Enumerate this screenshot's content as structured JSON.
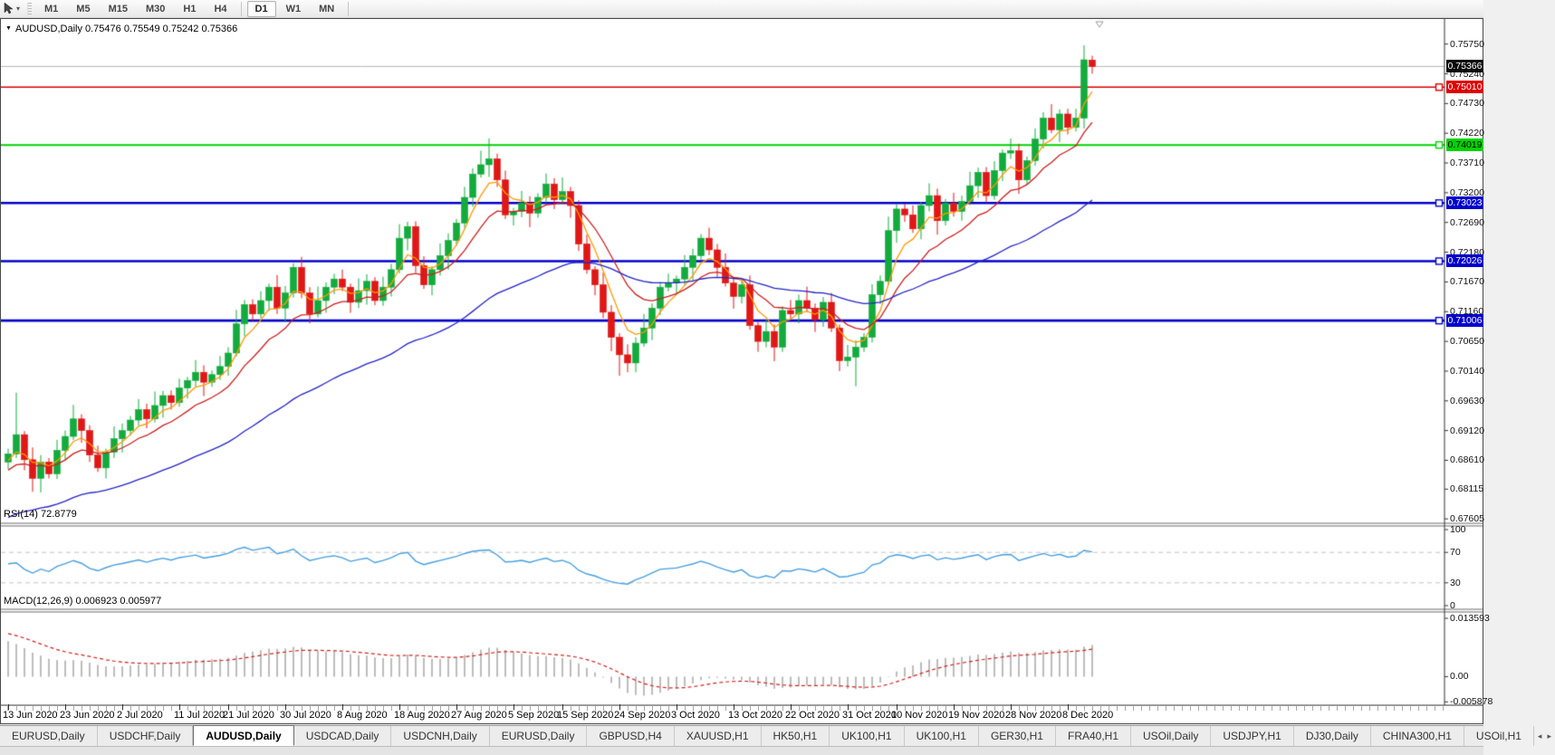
{
  "toolbar": {
    "cursor_tool": "cursor-pointer-tool",
    "dropdown_icon": "▾",
    "timeframes": [
      {
        "label": "M1",
        "active": false
      },
      {
        "label": "M5",
        "active": false
      },
      {
        "label": "M15",
        "active": false
      },
      {
        "label": "M30",
        "active": false
      },
      {
        "label": "H1",
        "active": false
      },
      {
        "label": "H4",
        "active": false
      },
      {
        "label": "D1",
        "active": true
      },
      {
        "label": "W1",
        "active": false
      },
      {
        "label": "MN",
        "active": false
      }
    ],
    "separators_after": [
      5,
      8
    ]
  },
  "chart": {
    "title": "AUDUSD,Daily  0.75476 0.75549 0.75242 0.75366",
    "symbol": "AUDUSD",
    "timeframe": "Daily",
    "title_arrow_icon": "▼",
    "open": "0.75476",
    "high": "0.75549",
    "low": "0.75242",
    "close": "0.75366"
  },
  "price_axis": {
    "ticks": [
      "0.75750",
      "0.75240",
      "0.74730",
      "0.74220",
      "0.73710",
      "0.73200",
      "0.72690",
      "0.72180",
      "0.71670",
      "0.71160",
      "0.70650",
      "0.70140",
      "0.69630",
      "0.69120",
      "0.68610",
      "0.68115",
      "0.67605"
    ],
    "current_price": {
      "label": "0.75366",
      "value": 0.75366,
      "bg": "#0a0a0a",
      "fg": "#ffffff"
    }
  },
  "hlines": [
    {
      "value": 0.7501,
      "label": "0.75010",
      "color": "#dd0000",
      "thickness": 1.6,
      "text_color": "#ffffff"
    },
    {
      "value": 0.74019,
      "label": "0.74019",
      "color": "#00d300",
      "thickness": 2.0,
      "text_color": "#000000"
    },
    {
      "value": 0.73023,
      "label": "0.73023",
      "color": "#0000cc",
      "thickness": 2.6,
      "text_color": "#ffffff"
    },
    {
      "value": 0.72026,
      "label": "0.72026",
      "color": "#0000cc",
      "thickness": 2.6,
      "text_color": "#ffffff"
    },
    {
      "value": 0.71006,
      "label": "0.71006",
      "color": "#0000cc",
      "thickness": 2.6,
      "text_color": "#ffffff"
    }
  ],
  "indicators": {
    "rsi": {
      "label": "RSI(14) 72.8779",
      "value": "72.8779",
      "period": 14,
      "color": "#47a0e0",
      "levels": [
        "100",
        "70",
        "30",
        "0"
      ],
      "level_values": [
        100,
        70,
        30,
        0
      ],
      "dashed_levels": [
        70,
        30
      ]
    },
    "macd": {
      "label": "MACD(12,26,9) 0.006923 0.005977",
      "macd_value": "0.006923",
      "signal_value": "0.005977",
      "axis": [
        "0.013593",
        "0.00",
        "-0.005878"
      ],
      "axis_values": [
        0.013593,
        0.0,
        -0.005878
      ],
      "histogram_color": "#bdbdbd",
      "signal_color": "#d42020"
    }
  },
  "chart_data": {
    "type": "candlestick",
    "symbol": "AUDUSD",
    "timeframe": "Daily",
    "price_range": {
      "top": 0.759,
      "bottom": 0.675
    },
    "closes": [
      0.6872,
      0.6905,
      0.6862,
      0.683,
      0.6858,
      0.6838,
      0.6878,
      0.6902,
      0.6932,
      0.6912,
      0.687,
      0.6848,
      0.6875,
      0.6898,
      0.6912,
      0.693,
      0.6948,
      0.6932,
      0.6955,
      0.6972,
      0.696,
      0.6985,
      0.6998,
      0.7012,
      0.6995,
      0.7008,
      0.7022,
      0.7045,
      0.7095,
      0.7128,
      0.7112,
      0.7135,
      0.7158,
      0.7122,
      0.7148,
      0.7192,
      0.7148,
      0.7112,
      0.7135,
      0.7158,
      0.7172,
      0.7158,
      0.7132,
      0.7152,
      0.7168,
      0.7135,
      0.7158,
      0.7188,
      0.7242,
      0.7262,
      0.7195,
      0.7162,
      0.7188,
      0.7212,
      0.7238,
      0.7268,
      0.7312,
      0.7352,
      0.7368,
      0.7378,
      0.7342,
      0.7282,
      0.7288,
      0.7302,
      0.7285,
      0.7312,
      0.7335,
      0.7308,
      0.7322,
      0.7298,
      0.7232,
      0.7188,
      0.7162,
      0.7115,
      0.7072,
      0.7042,
      0.7028,
      0.7062,
      0.7088,
      0.7122,
      0.7158,
      0.7165,
      0.7172,
      0.7192,
      0.7212,
      0.7242,
      0.7222,
      0.7192,
      0.7165,
      0.7142,
      0.7162,
      0.7092,
      0.7065,
      0.7082,
      0.7055,
      0.7118,
      0.7112,
      0.7135,
      0.7122,
      0.7102,
      0.7132,
      0.7088,
      0.7032,
      0.7038,
      0.7055,
      0.7072,
      0.7145,
      0.7168,
      0.7255,
      0.7292,
      0.7282,
      0.7258,
      0.7298,
      0.7315,
      0.7272,
      0.7302,
      0.7288,
      0.7305,
      0.7332,
      0.7355,
      0.7315,
      0.7358,
      0.7388,
      0.7392,
      0.7342,
      0.7375,
      0.7412,
      0.7448,
      0.7428,
      0.7455,
      0.7432,
      0.7448,
      0.7548,
      0.75366
    ],
    "first_open": 0.6858,
    "current_candle": {
      "open": 0.75476,
      "high": 0.75549,
      "low": 0.75242,
      "close": 0.75366
    },
    "special_wicks": {
      "1": {
        "high": 0.6977
      },
      "3": {
        "low": 0.6807
      },
      "59": {
        "high": 0.7413
      },
      "75": {
        "low": 0.7006
      },
      "76": {
        "low": 0.7012
      },
      "104": {
        "low": 0.6988
      },
      "132": {
        "high": 0.7573
      }
    },
    "wick_pattern": [
      0.0009,
      0.0016,
      0.0006,
      0.0021,
      0.0012,
      0.0007,
      0.0018,
      0.001,
      0.0024,
      0.0008
    ],
    "up_color": "#12ab3c",
    "down_color": "#e01717",
    "moving_averages": [
      {
        "name": "fast",
        "period": 5,
        "color": "#ff9a00",
        "seed_offset": 0.0017
      },
      {
        "name": "medium",
        "period": 12,
        "color": "#cc1f1f",
        "seed_offset": 0.0033
      },
      {
        "name": "slow",
        "period": 45,
        "color": "#2424c8",
        "seed": 0.6758
      }
    ],
    "date_labels": [
      "13 Jun 2020",
      "23 Jun 2020",
      "2 Jul 2020",
      "11 Jul 2020",
      "21 Jul 2020",
      "30 Jul 2020",
      "8 Aug 2020",
      "18 Aug 2020",
      "27 Aug 2020",
      "5 Sep 2020",
      "15 Sep 2020",
      "24 Sep 2020",
      "3 Oct 2020",
      "13 Oct 2020",
      "22 Oct 2020",
      "31 Oct 2020",
      "10 Nov 2020",
      "19 Nov 2020",
      "28 Nov 2020",
      "8 Dec 2020"
    ],
    "date_label_indices": [
      0,
      7,
      14,
      21,
      27,
      34,
      41,
      48,
      55,
      62,
      68,
      75,
      82,
      89,
      96,
      103,
      109,
      116,
      123,
      130
    ]
  },
  "tabs": {
    "items": [
      {
        "label": "EURUSD,Daily",
        "active": false
      },
      {
        "label": "USDCHF,Daily",
        "active": false
      },
      {
        "label": "AUDUSD,Daily",
        "active": true
      },
      {
        "label": "USDCAD,Daily",
        "active": false
      },
      {
        "label": "USDCNH,Daily",
        "active": false
      },
      {
        "label": "EURUSD,Daily",
        "active": false
      },
      {
        "label": "GBPUSD,H4",
        "active": false
      },
      {
        "label": "XAUUSD,H1",
        "active": false
      },
      {
        "label": "HK50,H1",
        "active": false
      },
      {
        "label": "UK100,H1",
        "active": false
      },
      {
        "label": "UK100,H1",
        "active": false
      },
      {
        "label": "GER30,H1",
        "active": false
      },
      {
        "label": "FRA40,H1",
        "active": false
      },
      {
        "label": "USOil,Daily",
        "active": false
      },
      {
        "label": "USDJPY,H1",
        "active": false
      },
      {
        "label": "DJ30,Daily",
        "active": false
      },
      {
        "label": "CHINA300,H1",
        "active": false
      },
      {
        "label": "USOil,H1",
        "active": false
      }
    ],
    "scroll_left_icon": "◂",
    "scroll_right_icon": "▸"
  }
}
